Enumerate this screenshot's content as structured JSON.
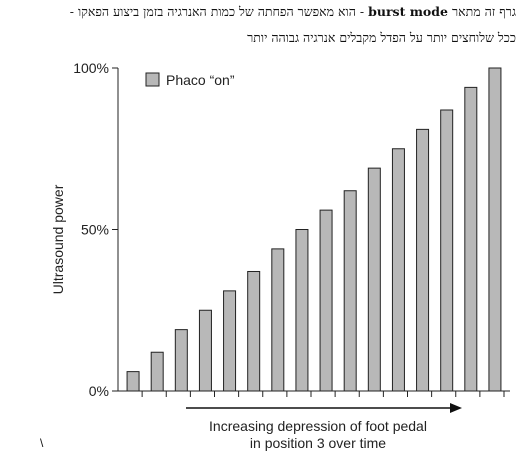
{
  "caption": {
    "line1_prefix": "גרף זה מתאר",
    "line1_term": "burst mode",
    "line1_suffix": "- הוא מאפשר הפחתה של כמות האנרגיה בזמן ביצוע הפאקו -",
    "line2": "ככל שלוחצים יותר על הפדל מקבלים אנרגיה גבוהה יותר"
  },
  "stray_mark": "\\",
  "chart_data": {
    "type": "bar",
    "ylabel": "Ultrasound power",
    "xlabel": "Increasing depression of foot pedal in position 3 over time",
    "xlabel_lines": [
      "Increasing depression of foot pedal",
      "in position 3 over time"
    ],
    "y_ticks": [
      "100%",
      "50%",
      "0%"
    ],
    "ylim": [
      0,
      100
    ],
    "legend": {
      "label": "Phaco “on”",
      "position": "top-left"
    },
    "bar_color": "#b8b8b8",
    "series": [
      {
        "name": "Phaco “on”",
        "values": [
          6,
          12,
          19,
          25,
          31,
          37,
          44,
          50,
          56,
          62,
          69,
          75,
          81,
          87,
          94,
          100
        ]
      }
    ]
  }
}
